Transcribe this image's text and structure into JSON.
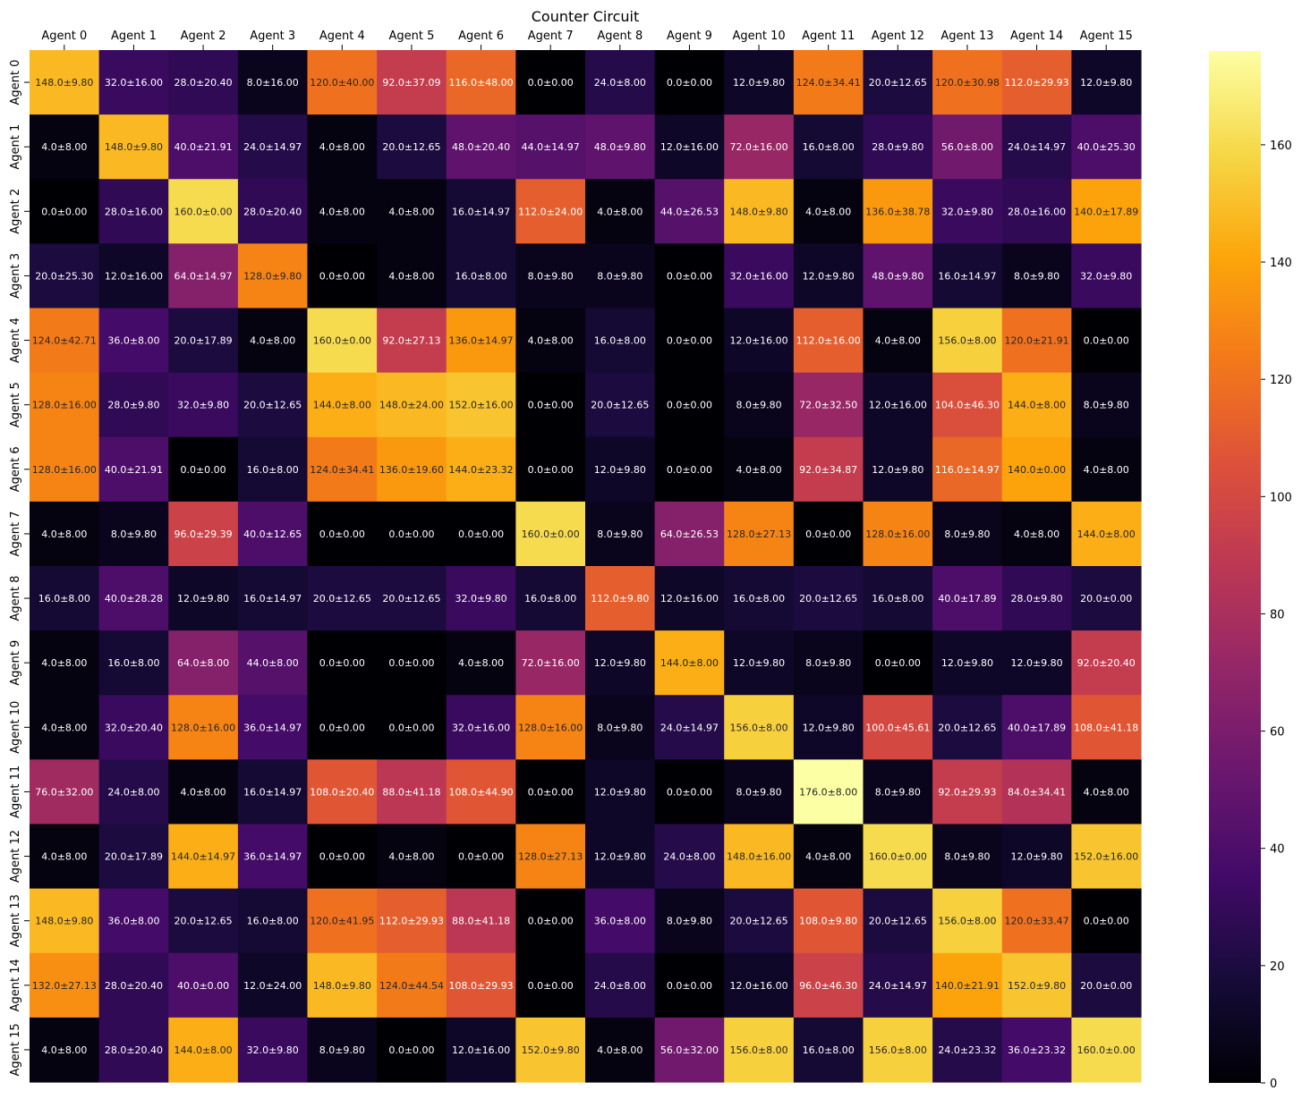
{
  "chart_data": {
    "type": "heatmap",
    "title": "Counter Circuit",
    "x_labels": [
      "Agent 0",
      "Agent 1",
      "Agent 2",
      "Agent 3",
      "Agent 4",
      "Agent 5",
      "Agent 6",
      "Agent 7",
      "Agent 8",
      "Agent 9",
      "Agent 10",
      "Agent 11",
      "Agent 12",
      "Agent 13",
      "Agent 14",
      "Agent 15"
    ],
    "y_labels": [
      "Agent 0",
      "Agent 1",
      "Agent 2",
      "Agent 3",
      "Agent 4",
      "Agent 5",
      "Agent 6",
      "Agent 7",
      "Agent 8",
      "Agent 9",
      "Agent 10",
      "Agent 11",
      "Agent 12",
      "Agent 13",
      "Agent 14",
      "Agent 15"
    ],
    "colormap": "inferno",
    "color_range": [
      0,
      176
    ],
    "colorbar_ticks": [
      0,
      20,
      40,
      60,
      80,
      100,
      120,
      140,
      160
    ],
    "values": [
      [
        148,
        32,
        28,
        8,
        120,
        92,
        116,
        0,
        24,
        0,
        12,
        124,
        20,
        120,
        112,
        12
      ],
      [
        4,
        148,
        40,
        24,
        4,
        20,
        48,
        44,
        48,
        12,
        72,
        16,
        28,
        56,
        24,
        40
      ],
      [
        0,
        28,
        160,
        28,
        4,
        4,
        16,
        112,
        4,
        44,
        148,
        4,
        136,
        32,
        28,
        140
      ],
      [
        20,
        12,
        64,
        128,
        0,
        4,
        16,
        8,
        8,
        0,
        32,
        12,
        48,
        16,
        8,
        32
      ],
      [
        124,
        36,
        20,
        4,
        160,
        92,
        136,
        4,
        16,
        0,
        12,
        112,
        4,
        156,
        120,
        0
      ],
      [
        128,
        28,
        32,
        20,
        144,
        148,
        152,
        0,
        20,
        0,
        8,
        72,
        12,
        104,
        144,
        8
      ],
      [
        128,
        40,
        0,
        16,
        124,
        136,
        144,
        0,
        12,
        0,
        4,
        92,
        12,
        116,
        140,
        4
      ],
      [
        4,
        8,
        96,
        40,
        0,
        0,
        0,
        160,
        8,
        64,
        128,
        0,
        128,
        8,
        4,
        144
      ],
      [
        16,
        40,
        12,
        16,
        20,
        20,
        32,
        16,
        112,
        12,
        16,
        20,
        16,
        40,
        28,
        20
      ],
      [
        4,
        16,
        64,
        44,
        0,
        0,
        4,
        72,
        12,
        144,
        12,
        8,
        0,
        12,
        12,
        92
      ],
      [
        4,
        32,
        128,
        36,
        0,
        0,
        32,
        128,
        8,
        24,
        156,
        12,
        100,
        20,
        40,
        108
      ],
      [
        76,
        24,
        4,
        16,
        108,
        88,
        108,
        0,
        12,
        0,
        8,
        176,
        8,
        92,
        84,
        4
      ],
      [
        4,
        20,
        144,
        36,
        0,
        4,
        0,
        128,
        12,
        24,
        148,
        4,
        160,
        8,
        12,
        152
      ],
      [
        148,
        36,
        20,
        16,
        120,
        112,
        88,
        0,
        36,
        8,
        20,
        108,
        20,
        156,
        120,
        0
      ],
      [
        132,
        28,
        40,
        12,
        148,
        124,
        108,
        0,
        24,
        0,
        12,
        96,
        24,
        140,
        152,
        20
      ],
      [
        4,
        28,
        144,
        32,
        8,
        0,
        12,
        152,
        4,
        56,
        156,
        16,
        156,
        24,
        36,
        160
      ]
    ],
    "errors": [
      [
        9.8,
        16.0,
        20.4,
        16.0,
        40.0,
        37.09,
        48.0,
        0.0,
        8.0,
        0.0,
        9.8,
        34.41,
        12.65,
        30.98,
        29.93,
        9.8
      ],
      [
        8.0,
        9.8,
        21.91,
        14.97,
        8.0,
        12.65,
        20.4,
        14.97,
        9.8,
        16.0,
        16.0,
        8.0,
        9.8,
        8.0,
        14.97,
        25.3
      ],
      [
        0.0,
        16.0,
        0.0,
        20.4,
        8.0,
        8.0,
        14.97,
        24.0,
        8.0,
        26.53,
        9.8,
        8.0,
        38.78,
        9.8,
        16.0,
        17.89
      ],
      [
        25.3,
        16.0,
        14.97,
        9.8,
        0.0,
        8.0,
        8.0,
        9.8,
        9.8,
        0.0,
        16.0,
        9.8,
        9.8,
        14.97,
        9.8,
        9.8
      ],
      [
        42.71,
        8.0,
        17.89,
        8.0,
        0.0,
        27.13,
        14.97,
        8.0,
        8.0,
        0.0,
        16.0,
        16.0,
        8.0,
        8.0,
        21.91,
        0.0
      ],
      [
        16.0,
        9.8,
        9.8,
        12.65,
        8.0,
        24.0,
        16.0,
        0.0,
        12.65,
        0.0,
        9.8,
        32.5,
        16.0,
        46.3,
        8.0,
        9.8
      ],
      [
        16.0,
        21.91,
        0.0,
        8.0,
        34.41,
        19.6,
        23.32,
        0.0,
        9.8,
        0.0,
        8.0,
        34.87,
        9.8,
        14.97,
        0.0,
        8.0
      ],
      [
        8.0,
        9.8,
        29.39,
        12.65,
        0.0,
        0.0,
        0.0,
        0.0,
        9.8,
        26.53,
        27.13,
        0.0,
        16.0,
        9.8,
        8.0,
        8.0
      ],
      [
        8.0,
        28.28,
        9.8,
        14.97,
        12.65,
        12.65,
        9.8,
        8.0,
        9.8,
        16.0,
        8.0,
        12.65,
        8.0,
        17.89,
        9.8,
        0.0
      ],
      [
        8.0,
        8.0,
        8.0,
        8.0,
        0.0,
        0.0,
        8.0,
        16.0,
        9.8,
        8.0,
        9.8,
        9.8,
        0.0,
        9.8,
        9.8,
        20.4
      ],
      [
        8.0,
        20.4,
        16.0,
        14.97,
        0.0,
        0.0,
        16.0,
        16.0,
        9.8,
        14.97,
        8.0,
        9.8,
        45.61,
        12.65,
        17.89,
        41.18
      ],
      [
        32.0,
        8.0,
        8.0,
        14.97,
        20.4,
        41.18,
        44.9,
        0.0,
        9.8,
        0.0,
        9.8,
        8.0,
        9.8,
        29.93,
        34.41,
        8.0
      ],
      [
        8.0,
        17.89,
        14.97,
        14.97,
        0.0,
        8.0,
        0.0,
        27.13,
        9.8,
        8.0,
        16.0,
        8.0,
        0.0,
        9.8,
        9.8,
        16.0
      ],
      [
        9.8,
        8.0,
        12.65,
        8.0,
        41.95,
        29.93,
        41.18,
        0.0,
        8.0,
        9.8,
        12.65,
        9.8,
        12.65,
        8.0,
        33.47,
        0.0
      ],
      [
        27.13,
        20.4,
        0.0,
        24.0,
        9.8,
        44.54,
        29.93,
        0.0,
        8.0,
        0.0,
        16.0,
        46.3,
        14.97,
        21.91,
        9.8,
        0.0
      ],
      [
        8.0,
        20.4,
        8.0,
        9.8,
        9.8,
        0.0,
        16.0,
        9.8,
        8.0,
        32.0,
        8.0,
        8.0,
        8.0,
        23.32,
        23.32,
        0.0
      ]
    ]
  }
}
